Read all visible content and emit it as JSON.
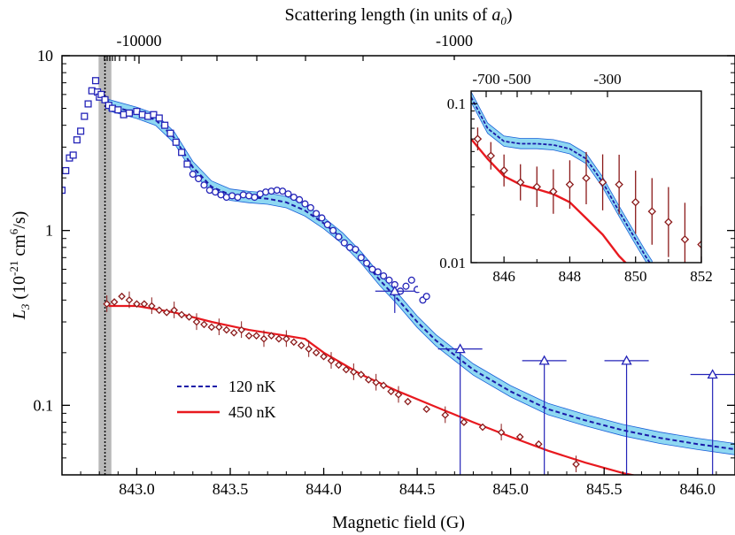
{
  "chart_data": [
    {
      "type": "scatter",
      "title": "",
      "xlabel": "Magnetic field (G)",
      "ylabel_parts": [
        "L",
        "3",
        " (10",
        "-21",
        " cm",
        "6",
        "/s)"
      ],
      "top_axis_label_parts": [
        "Scattering length (in units of ",
        "a",
        "0",
        ")"
      ],
      "top_axis_ticks": [
        "-10000",
        "-1000"
      ],
      "xlim": [
        842.6,
        846.2
      ],
      "ylim": [
        0.04,
        10
      ],
      "yscale": "log",
      "x_ticks": [
        "843.0",
        "843.5",
        "844.0",
        "844.5",
        "845.0",
        "845.5",
        "846.0"
      ],
      "y_ticks": [
        "0.1",
        "1",
        "10"
      ],
      "grid": false,
      "legend": {
        "position": "lower-left",
        "entries": [
          {
            "label": "120 nK",
            "color": "#1a1aa8",
            "style": "dashed"
          },
          {
            "label": "450 nK",
            "color": "#e8191f",
            "style": "solid"
          }
        ]
      },
      "resonance_band_x": [
        842.81,
        842.85
      ],
      "series": [
        {
          "marker": "square",
          "color": "#2424b8",
          "points": [
            [
              842.6,
              1.7
            ],
            [
              842.62,
              2.2
            ],
            [
              842.64,
              2.6
            ],
            [
              842.66,
              2.7
            ],
            [
              842.68,
              3.3
            ],
            [
              842.7,
              3.7
            ],
            [
              842.72,
              4.5
            ],
            [
              842.74,
              5.3
            ],
            [
              842.76,
              6.3
            ],
            [
              842.78,
              7.2
            ],
            [
              842.79,
              6.2
            ],
            [
              842.8,
              5.8
            ],
            [
              842.81,
              6.0
            ],
            [
              842.83,
              5.6
            ],
            [
              842.85,
              5.2
            ],
            [
              842.87,
              5.0
            ],
            [
              842.9,
              4.9
            ],
            [
              842.93,
              4.6
            ],
            [
              842.96,
              4.7
            ],
            [
              843.0,
              4.8
            ],
            [
              843.03,
              4.6
            ],
            [
              843.06,
              4.5
            ],
            [
              843.09,
              4.6
            ],
            [
              843.12,
              4.4
            ],
            [
              843.15,
              4.0
            ],
            [
              843.18,
              3.6
            ],
            [
              843.21,
              3.2
            ],
            [
              843.24,
              2.8
            ],
            [
              843.27,
              2.4
            ]
          ]
        },
        {
          "marker": "circle",
          "color": "#2424b8",
          "points": [
            [
              843.3,
              2.1
            ],
            [
              843.33,
              1.98
            ],
            [
              843.36,
              1.82
            ],
            [
              843.39,
              1.7
            ],
            [
              843.42,
              1.66
            ],
            [
              843.45,
              1.6
            ],
            [
              843.48,
              1.55
            ],
            [
              843.51,
              1.58
            ],
            [
              843.54,
              1.55
            ],
            [
              843.57,
              1.6
            ],
            [
              843.6,
              1.58
            ],
            [
              843.63,
              1.55
            ],
            [
              843.66,
              1.62
            ],
            [
              843.69,
              1.66
            ],
            [
              843.72,
              1.68
            ],
            [
              843.75,
              1.7
            ],
            [
              843.78,
              1.68
            ],
            [
              843.81,
              1.62
            ],
            [
              843.84,
              1.55
            ],
            [
              843.87,
              1.5
            ],
            [
              843.9,
              1.42
            ],
            [
              843.93,
              1.35
            ],
            [
              843.96,
              1.25
            ],
            [
              843.99,
              1.18
            ],
            [
              844.02,
              1.08
            ],
            [
              844.05,
              1.0
            ],
            [
              844.08,
              0.92
            ],
            [
              844.11,
              0.85
            ],
            [
              844.14,
              0.8
            ],
            [
              844.17,
              0.78
            ],
            [
              844.2,
              0.7
            ],
            [
              844.23,
              0.65
            ],
            [
              844.26,
              0.6
            ],
            [
              844.29,
              0.58
            ],
            [
              844.32,
              0.55
            ],
            [
              844.35,
              0.52
            ],
            [
              844.38,
              0.49
            ],
            [
              844.41,
              0.45
            ],
            [
              844.44,
              0.48
            ],
            [
              844.47,
              0.52
            ],
            [
              844.5,
              0.46
            ],
            [
              844.53,
              0.4
            ],
            [
              844.55,
              0.42
            ]
          ]
        },
        {
          "marker": "diamond",
          "color": "#8b1a1a",
          "points": [
            [
              842.84,
              0.38
            ],
            [
              842.88,
              0.39
            ],
            [
              842.92,
              0.42
            ],
            [
              842.96,
              0.4
            ],
            [
              843.0,
              0.38
            ],
            [
              843.04,
              0.38
            ],
            [
              843.08,
              0.37
            ],
            [
              843.12,
              0.35
            ],
            [
              843.16,
              0.34
            ],
            [
              843.2,
              0.35
            ],
            [
              843.24,
              0.33
            ],
            [
              843.28,
              0.32
            ],
            [
              843.32,
              0.3
            ],
            [
              843.36,
              0.29
            ],
            [
              843.4,
              0.28
            ],
            [
              843.44,
              0.28
            ],
            [
              843.48,
              0.27
            ],
            [
              843.52,
              0.26
            ],
            [
              843.56,
              0.27
            ],
            [
              843.6,
              0.25
            ],
            [
              843.64,
              0.25
            ],
            [
              843.68,
              0.24
            ],
            [
              843.72,
              0.25
            ],
            [
              843.76,
              0.24
            ],
            [
              843.8,
              0.24
            ],
            [
              843.84,
              0.23
            ],
            [
              843.88,
              0.22
            ],
            [
              843.92,
              0.21
            ],
            [
              843.96,
              0.2
            ],
            [
              844.0,
              0.19
            ],
            [
              844.04,
              0.18
            ],
            [
              844.08,
              0.17
            ],
            [
              844.12,
              0.16
            ],
            [
              844.16,
              0.155
            ],
            [
              844.2,
              0.15
            ],
            [
              844.24,
              0.14
            ],
            [
              844.28,
              0.135
            ],
            [
              844.32,
              0.13
            ],
            [
              844.36,
              0.12
            ],
            [
              844.4,
              0.115
            ],
            [
              844.45,
              0.105
            ],
            [
              844.55,
              0.095
            ],
            [
              844.65,
              0.088
            ],
            [
              844.75,
              0.08
            ],
            [
              844.85,
              0.075
            ],
            [
              844.95,
              0.07
            ],
            [
              845.05,
              0.066
            ],
            [
              845.15,
              0.06
            ],
            [
              845.35,
              0.046
            ]
          ]
        },
        {
          "marker": "triangle",
          "color": "#2424b8",
          "points": [
            [
              844.38,
              0.45
            ],
            [
              844.73,
              0.21
            ],
            [
              845.18,
              0.18
            ],
            [
              845.62,
              0.18
            ],
            [
              846.08,
              0.15
            ]
          ]
        }
      ],
      "curves": [
        {
          "name": "120 nK",
          "color": "#1a1aa8",
          "style": "dashed",
          "band_color": "#8fd8f2",
          "points": [
            [
              842.85,
              5.2
            ],
            [
              843.0,
              4.7
            ],
            [
              843.1,
              4.3
            ],
            [
              843.2,
              3.4
            ],
            [
              843.3,
              2.3
            ],
            [
              843.4,
              1.78
            ],
            [
              843.5,
              1.6
            ],
            [
              843.6,
              1.55
            ],
            [
              843.7,
              1.52
            ],
            [
              843.8,
              1.45
            ],
            [
              843.9,
              1.3
            ],
            [
              844.0,
              1.1
            ],
            [
              844.1,
              0.9
            ],
            [
              844.2,
              0.7
            ],
            [
              844.3,
              0.52
            ],
            [
              844.4,
              0.4
            ],
            [
              844.5,
              0.3
            ],
            [
              844.6,
              0.235
            ],
            [
              844.8,
              0.16
            ],
            [
              845.0,
              0.12
            ],
            [
              845.2,
              0.095
            ],
            [
              845.4,
              0.082
            ],
            [
              845.6,
              0.072
            ],
            [
              845.8,
              0.065
            ],
            [
              846.0,
              0.06
            ],
            [
              846.2,
              0.056
            ]
          ]
        },
        {
          "name": "450 nK",
          "color": "#e8191f",
          "style": "solid",
          "points": [
            [
              842.85,
              0.37
            ],
            [
              843.0,
              0.37
            ],
            [
              843.2,
              0.34
            ],
            [
              843.4,
              0.3
            ],
            [
              843.6,
              0.27
            ],
            [
              843.8,
              0.25
            ],
            [
              843.9,
              0.24
            ],
            [
              844.0,
              0.2
            ],
            [
              844.2,
              0.15
            ],
            [
              844.4,
              0.12
            ],
            [
              844.6,
              0.098
            ],
            [
              844.8,
              0.08
            ],
            [
              845.0,
              0.066
            ],
            [
              845.2,
              0.055
            ],
            [
              845.4,
              0.047
            ],
            [
              845.6,
              0.041
            ],
            [
              845.8,
              0.037
            ]
          ]
        }
      ]
    },
    {
      "type": "scatter",
      "title": "",
      "xlim": [
        845,
        852
      ],
      "ylim": [
        0.01,
        0.12
      ],
      "yscale": "log",
      "x_ticks": [
        "846",
        "848",
        "850",
        "852"
      ],
      "y_ticks": [
        "0.01",
        "0.1"
      ],
      "top_axis_ticks": [
        "-700",
        "-500",
        "-300"
      ],
      "series": [
        {
          "marker": "diamond",
          "color": "#8b1a1a",
          "points": [
            [
              845.2,
              0.06
            ],
            [
              845.6,
              0.047
            ],
            [
              846.0,
              0.038
            ],
            [
              846.5,
              0.032
            ],
            [
              847.0,
              0.03
            ],
            [
              847.5,
              0.028
            ],
            [
              848.0,
              0.031
            ],
            [
              848.5,
              0.034
            ],
            [
              849.0,
              0.032
            ],
            [
              849.5,
              0.031
            ],
            [
              850.0,
              0.024
            ],
            [
              850.5,
              0.021
            ],
            [
              851.0,
              0.018
            ],
            [
              851.5,
              0.014
            ],
            [
              852.0,
              0.013
            ]
          ]
        }
      ],
      "curves": [
        {
          "name": "120 nK",
          "color": "#1a1aa8",
          "style": "dashed",
          "band_color": "#8fd8f2",
          "points": [
            [
              845.0,
              0.11
            ],
            [
              845.5,
              0.07
            ],
            [
              846.0,
              0.058
            ],
            [
              846.5,
              0.056
            ],
            [
              847.0,
              0.056
            ],
            [
              847.5,
              0.055
            ],
            [
              848.0,
              0.052
            ],
            [
              848.5,
              0.045
            ],
            [
              849.0,
              0.032
            ],
            [
              849.5,
              0.021
            ],
            [
              850.0,
              0.014
            ],
            [
              850.3,
              0.011
            ],
            [
              850.5,
              0.0095
            ]
          ]
        },
        {
          "name": "450 nK",
          "color": "#e8191f",
          "style": "solid",
          "points": [
            [
              845.0,
              0.06
            ],
            [
              845.5,
              0.045
            ],
            [
              846.0,
              0.035
            ],
            [
              846.5,
              0.031
            ],
            [
              847.0,
              0.029
            ],
            [
              847.5,
              0.027
            ],
            [
              848.0,
              0.024
            ],
            [
              848.5,
              0.019
            ],
            [
              849.0,
              0.015
            ],
            [
              849.5,
              0.011
            ],
            [
              849.8,
              0.0095
            ]
          ]
        }
      ]
    }
  ]
}
